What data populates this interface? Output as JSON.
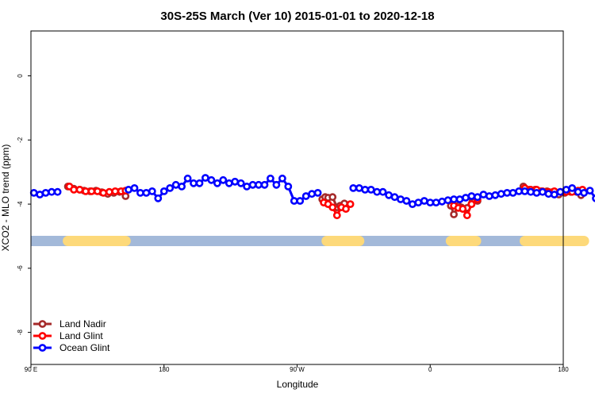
{
  "chart_data": {
    "type": "line",
    "title": "30S-25S March (Ver 10)   2015-01-01 to 2020-12-18",
    "xlabel": "Longitude",
    "ylabel": "XCO2 - MLO trend (ppm)",
    "xlim": [
      90,
      450
    ],
    "ylim": [
      -9,
      1.4
    ],
    "x_ticks": [
      {
        "value": 90,
        "label": "90 E"
      },
      {
        "value": 180,
        "label": "180"
      },
      {
        "value": 270,
        "label": "90 W"
      },
      {
        "value": 360,
        "label": "0"
      },
      {
        "value": 450,
        "label": "180"
      }
    ],
    "y_ticks": [
      {
        "value": 0,
        "label": "0"
      },
      {
        "value": -2,
        "label": "-2"
      },
      {
        "value": -4,
        "label": "-4"
      },
      {
        "value": -6,
        "label": "-6"
      },
      {
        "value": -8,
        "label": "-8"
      }
    ],
    "grid": false,
    "legend_position": "bottom-left",
    "surface_bar": {
      "y": -5.15,
      "ocean_color": "#a3b9d9",
      "land_color": "#fdd97a",
      "land_ranges": [
        [
          115,
          154
        ],
        [
          290,
          312
        ],
        [
          374,
          391
        ],
        [
          424,
          464
        ]
      ]
    },
    "series": [
      {
        "name": "Land Nadir",
        "color": "#a52a2a",
        "x": [
          115,
          119,
          123,
          126,
          130,
          134,
          138,
          142,
          146,
          150,
          153,
          154,
          287,
          289,
          291,
          294,
          297,
          299,
          302,
          374,
          376,
          379,
          381,
          385,
          388,
          392,
          423,
          427,
          431,
          435,
          439,
          443,
          447,
          451,
          455,
          459,
          462
        ],
        "y": [
          -3.45,
          -3.52,
          -3.55,
          -3.58,
          -3.6,
          -3.58,
          -3.63,
          -3.68,
          -3.65,
          -3.62,
          -3.62,
          -3.75,
          -3.85,
          -3.78,
          -3.8,
          -3.78,
          -4.1,
          -4.05,
          -3.98,
          -4.05,
          -4.32,
          -4.05,
          -4.1,
          -4.12,
          -3.78,
          -3.9,
          -3.45,
          -3.55,
          -3.55,
          -3.6,
          -3.6,
          -3.62,
          -3.7,
          -3.65,
          -3.62,
          -3.62,
          -3.72
        ]
      },
      {
        "name": "Land Glint",
        "color": "#ff0000",
        "x": [
          116,
          119,
          123,
          127,
          131,
          135,
          139,
          143,
          147,
          151,
          154,
          288,
          291,
          294,
          297,
          300,
          303,
          306,
          376,
          379,
          382,
          385,
          388,
          392,
          424,
          428,
          432,
          436,
          440,
          444,
          448,
          452,
          456,
          460,
          463
        ],
        "y": [
          -3.45,
          -3.55,
          -3.55,
          -3.6,
          -3.6,
          -3.6,
          -3.65,
          -3.62,
          -3.6,
          -3.6,
          -3.58,
          -3.95,
          -4.0,
          -4.1,
          -4.35,
          -4.1,
          -4.15,
          -4.0,
          -4.05,
          -4.12,
          -4.15,
          -4.35,
          -4.0,
          -3.85,
          -3.5,
          -3.55,
          -3.55,
          -3.6,
          -3.62,
          -3.6,
          -3.62,
          -3.62,
          -3.62,
          -3.58,
          -3.55
        ]
      },
      {
        "name": "Ocean Glint",
        "color": "#0000ff",
        "x": [
          92,
          96,
          100,
          104,
          108,
          156,
          160,
          164,
          168,
          172,
          176,
          180,
          184,
          188,
          192,
          196,
          200,
          204,
          208,
          212,
          216,
          220,
          224,
          228,
          232,
          236,
          240,
          244,
          248,
          252,
          256,
          260,
          264,
          268,
          272,
          276,
          280,
          284,
          308,
          312,
          316,
          320,
          324,
          328,
          332,
          336,
          340,
          344,
          348,
          352,
          356,
          360,
          364,
          368,
          372,
          376,
          380,
          384,
          388,
          392,
          396,
          400,
          404,
          408,
          412,
          416,
          420,
          424,
          428,
          432,
          436,
          440,
          444,
          448,
          452,
          456,
          460,
          464,
          468,
          472,
          476,
          480,
          484,
          488
        ],
        "y": [
          -3.65,
          -3.7,
          -3.65,
          -3.62,
          -3.62,
          -3.55,
          -3.5,
          -3.65,
          -3.65,
          -3.6,
          -3.82,
          -3.6,
          -3.5,
          -3.4,
          -3.45,
          -3.2,
          -3.35,
          -3.35,
          -3.18,
          -3.25,
          -3.35,
          -3.25,
          -3.35,
          -3.3,
          -3.35,
          -3.45,
          -3.4,
          -3.4,
          -3.4,
          -3.2,
          -3.4,
          -3.2,
          -3.45,
          -3.9,
          -3.9,
          -3.75,
          -3.68,
          -3.65,
          -3.5,
          -3.5,
          -3.55,
          -3.55,
          -3.62,
          -3.62,
          -3.72,
          -3.78,
          -3.85,
          -3.9,
          -4.0,
          -3.95,
          -3.9,
          -3.95,
          -3.95,
          -3.92,
          -3.88,
          -3.85,
          -3.85,
          -3.8,
          -3.75,
          -3.78,
          -3.7,
          -3.75,
          -3.72,
          -3.68,
          -3.65,
          -3.65,
          -3.6,
          -3.6,
          -3.62,
          -3.65,
          -3.62,
          -3.68,
          -3.7,
          -3.62,
          -3.55,
          -3.5,
          -3.62,
          -3.65,
          -3.58,
          -3.82,
          -3.62,
          -3.68,
          -3.55,
          -3.82
        ]
      }
    ]
  }
}
